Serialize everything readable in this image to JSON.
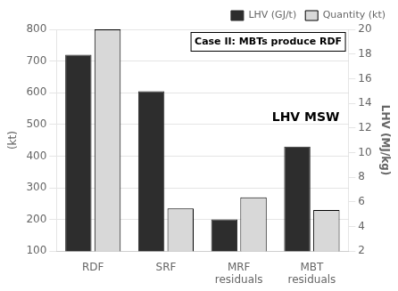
{
  "chart_data": {
    "type": "bar",
    "categories": [
      "RDF",
      "SRF",
      "MRF\nresiduals",
      "MBT\nresiduals"
    ],
    "series": [
      {
        "name": "LHV (GJ/t)",
        "color": "#2d2d2d",
        "values": [
          720,
          605,
          200,
          430
        ]
      },
      {
        "name": "Quantity (kt)",
        "color": "#d8d8d8",
        "values": [
          800,
          235,
          270,
          230
        ]
      }
    ],
    "ylabel": "(kt)",
    "y2label": "LHV (MJ/kg)",
    "ylim": [
      100,
      800
    ],
    "yticks": [
      100,
      200,
      300,
      400,
      500,
      600,
      700,
      800
    ],
    "y2lim": [
      2,
      20
    ],
    "y2ticks": [
      2,
      4,
      6,
      8,
      10,
      12,
      14,
      16,
      18,
      20
    ],
    "annotations": [
      "Case II: MBTs produce RDF",
      "LHV MSW"
    ],
    "grid": true,
    "legend": "upper right"
  }
}
